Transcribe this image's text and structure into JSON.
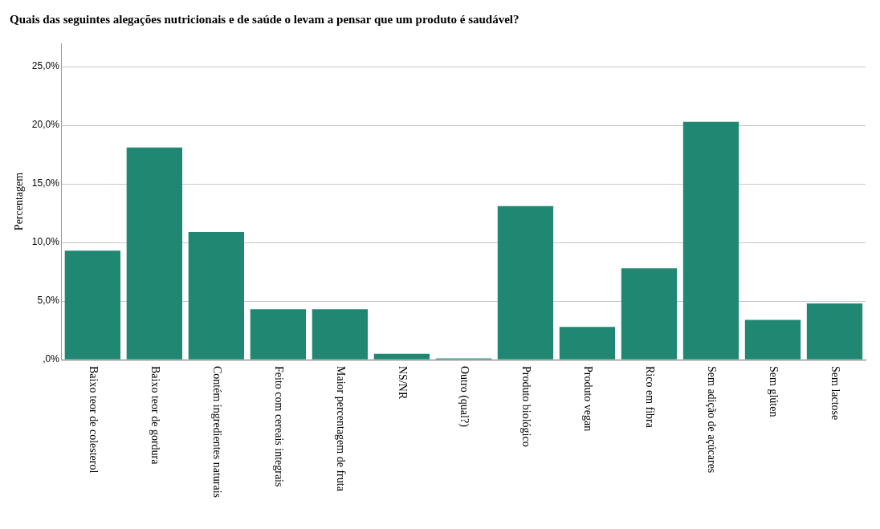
{
  "chart_data": {
    "type": "bar",
    "title": "Quais das seguintes alegações nutricionais e de saúde o levam a pensar que um produto é saudável?",
    "ylabel": "Percentagem",
    "categories": [
      "Baixo teor de colesterol",
      "Baixo teor de gordura",
      "Contém ingredientes naturais",
      "Feito com cereais integrais",
      "Maior percentagem de fruta",
      "NS/NR",
      "Outro (qual?)",
      "Produto biológico",
      "Produto vegan",
      "Rico em fibra",
      "Sem adição de açúcares",
      "Sem glúten",
      "Sem lactose"
    ],
    "values": [
      9.3,
      18.1,
      10.9,
      4.3,
      4.3,
      0.5,
      0.1,
      13.1,
      2.8,
      7.8,
      20.3,
      3.4,
      4.8
    ],
    "color": "#1f8772",
    "ylim": [
      0,
      27
    ],
    "yticks": [
      {
        "value": 0,
        "label": ",0%"
      },
      {
        "value": 5,
        "label": "5,0%"
      },
      {
        "value": 10,
        "label": "10,0%"
      },
      {
        "value": 15,
        "label": "15,0%"
      },
      {
        "value": 20,
        "label": "20,0%"
      },
      {
        "value": 25,
        "label": "25,0%"
      }
    ],
    "grid": "y",
    "legend": false
  }
}
